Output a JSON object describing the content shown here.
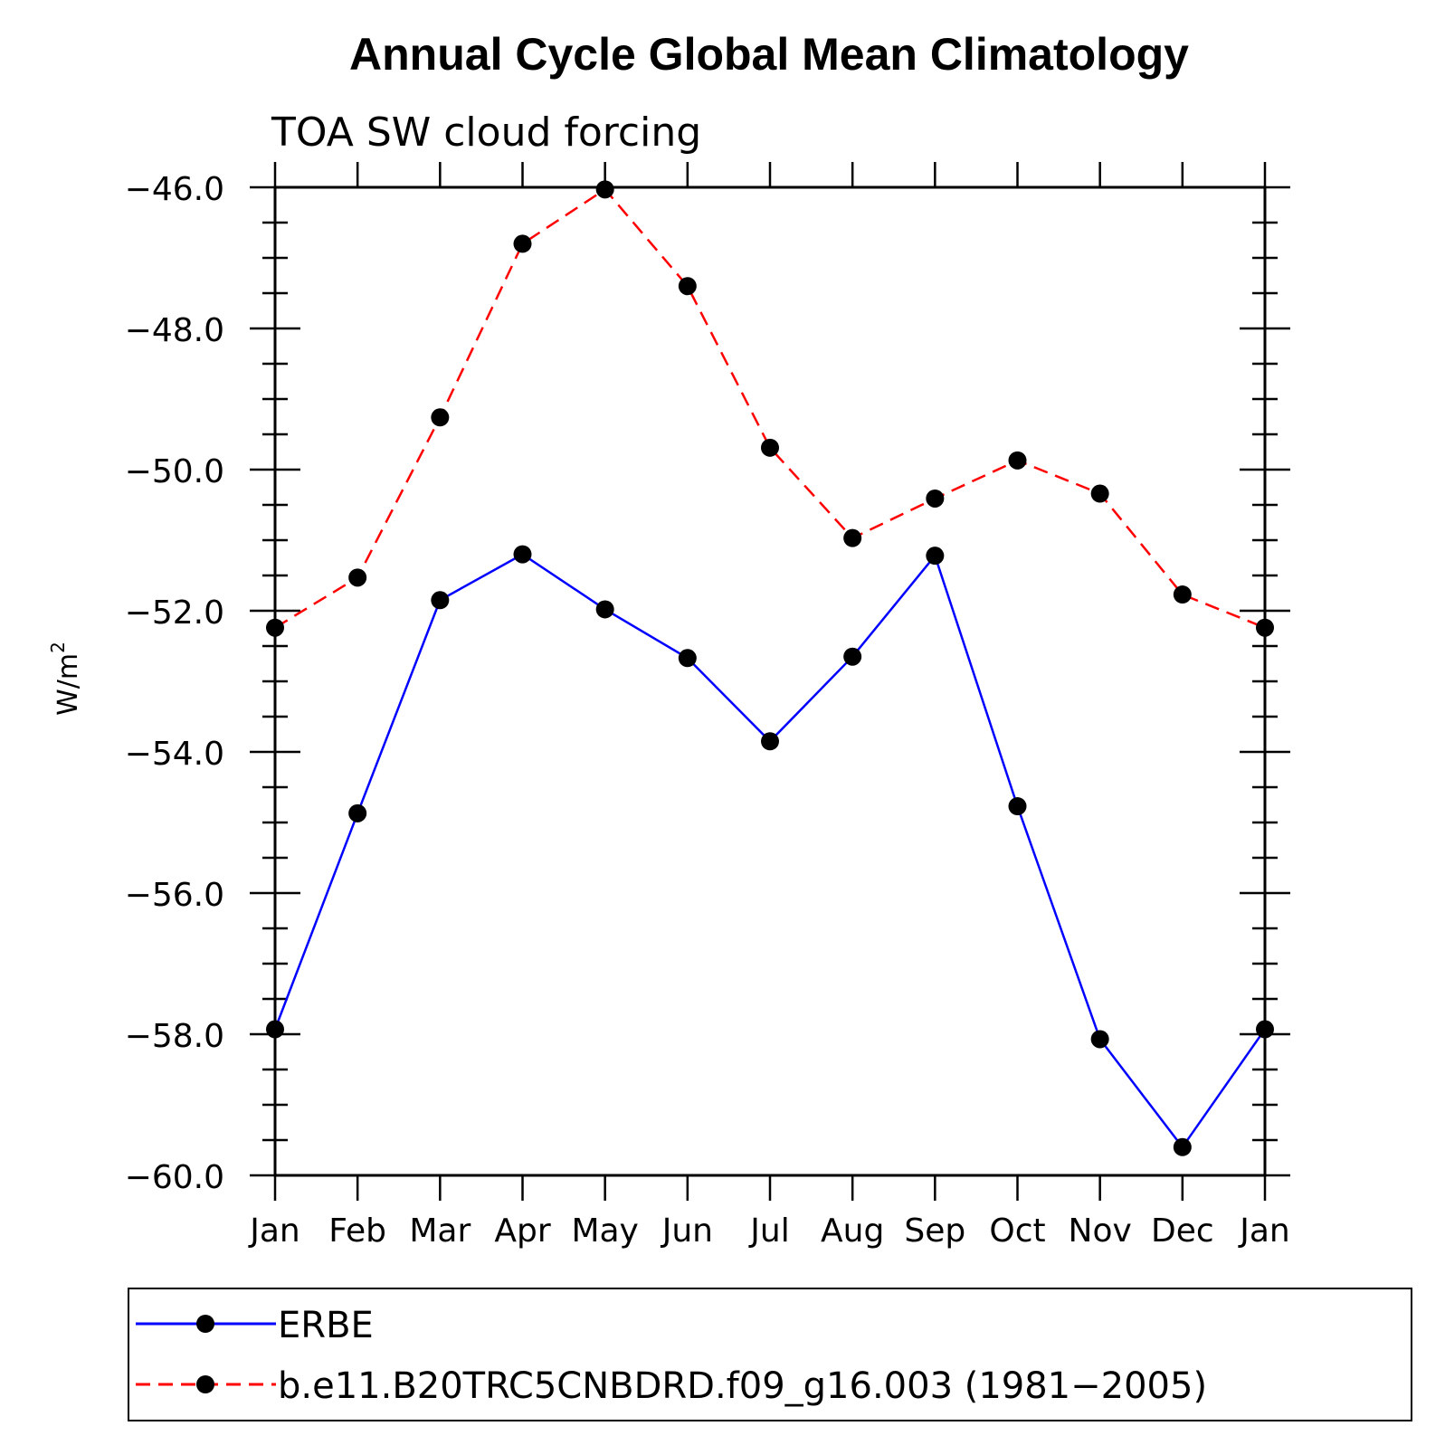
{
  "chart_data": {
    "type": "line",
    "title": "Annual Cycle Global Mean Climatology",
    "subtitle": "TOA SW cloud forcing",
    "xlabel": "",
    "ylabel": "W/m",
    "ylabel_superscript": "2",
    "categories": [
      "Jan",
      "Feb",
      "Mar",
      "Apr",
      "May",
      "Jun",
      "Jul",
      "Aug",
      "Sep",
      "Oct",
      "Nov",
      "Dec",
      "Jan"
    ],
    "ylim": [
      -60.0,
      -46.0
    ],
    "yticks": [
      -46.0,
      -48.0,
      -50.0,
      -52.0,
      -54.0,
      -56.0,
      -58.0,
      -60.0
    ],
    "ytick_labels": [
      "−46.0",
      "−48.0",
      "−50.0",
      "−52.0",
      "−54.0",
      "−56.0",
      "−58.0",
      "−60.0"
    ],
    "series": [
      {
        "name": "ERBE",
        "color": "#0000ff",
        "dash": "solid",
        "values": [
          -57.93,
          -54.87,
          -51.85,
          -51.2,
          -51.98,
          -52.67,
          -53.85,
          -52.65,
          -51.22,
          -54.77,
          -58.07,
          -59.6,
          -57.93
        ]
      },
      {
        "name": "b.e11.B20TRC5CNBDRD.f09_g16.003 (1981−2005)",
        "color": "#ff0000",
        "dash": "dashed",
        "values": [
          -52.24,
          -51.53,
          -49.26,
          -46.8,
          -46.03,
          -47.4,
          -49.69,
          -50.97,
          -50.41,
          -49.87,
          -50.34,
          -51.77,
          -52.24
        ]
      }
    ],
    "marker_color": "#000000",
    "legend_position": "bottom"
  }
}
